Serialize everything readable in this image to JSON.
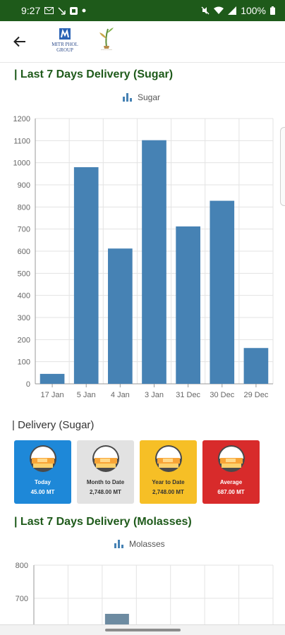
{
  "status_bar": {
    "time": "9:27",
    "battery": "100%"
  },
  "header": {
    "mitr_logo_text": "MITR PHOL",
    "mitr_logo_sub": "GROUP"
  },
  "sugar_section": {
    "title": "| Last 7 Days Delivery (Sugar)",
    "legend": "Sugar"
  },
  "molasses_section": {
    "title": "| Last 7 Days Delivery (Molasses)",
    "legend": "Molasses"
  },
  "delivery_section": {
    "title": "| Delivery (Sugar)",
    "cards": [
      {
        "label": "Today",
        "value": "45.00 MT",
        "bg": "#1e88d8",
        "fg": "#ffffff"
      },
      {
        "label": "Month to Date",
        "value": "2,748.00 MT",
        "bg": "#e2e2e2",
        "fg": "#333333"
      },
      {
        "label": "Year to Date",
        "value": "2,748.00 MT",
        "bg": "#f6bf26",
        "fg": "#333333"
      },
      {
        "label": "Average",
        "value": "687.00 MT",
        "bg": "#d82b2b",
        "fg": "#ffffff"
      }
    ]
  },
  "colors": {
    "bar": "#4682b4",
    "molasses_bar": "#6d8ba1",
    "accent": "#1e5a1a"
  },
  "chart_data": [
    {
      "type": "bar",
      "title": "",
      "categories": [
        "17 Jan",
        "5 Jan",
        "4 Jan",
        "3 Jan",
        "31 Dec",
        "30 Dec",
        "29 Dec"
      ],
      "series": [
        {
          "name": "Sugar",
          "values": [
            45,
            980,
            612,
            1102,
            712,
            828,
            162
          ]
        }
      ],
      "ylim": [
        0,
        1200
      ],
      "yticks": [
        "0",
        "100",
        "200",
        "300",
        "400",
        "500",
        "600",
        "700",
        "800",
        "900",
        "1000",
        "1100",
        "1200"
      ],
      "grid": true,
      "legend": "top-center"
    },
    {
      "type": "bar",
      "title": "",
      "categories": [],
      "series": [
        {
          "name": "Molasses",
          "values": []
        }
      ],
      "yticks": [
        "700",
        "800"
      ],
      "grid": true,
      "legend": "top-center"
    }
  ]
}
